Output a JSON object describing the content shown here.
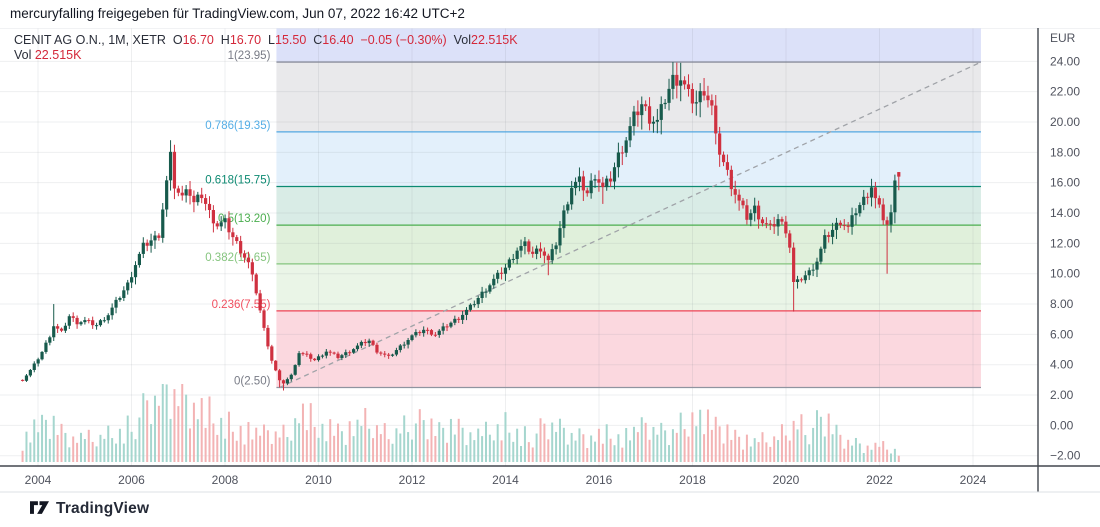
{
  "header": {
    "copyright": "mercuryfalling freigegeben für TradingView.com, Jun 07, 2022 16:42 UTC+2"
  },
  "legend": {
    "row1": [
      {
        "text": "CENIT AG O.N., 1M, XETR",
        "color": "dark"
      },
      {
        "text": "  O",
        "color": "dark"
      },
      {
        "text": "16.70",
        "color": "red"
      },
      {
        "text": "  H",
        "color": "dark"
      },
      {
        "text": "16.70",
        "color": "red"
      },
      {
        "text": "  L",
        "color": "dark"
      },
      {
        "text": "15.50",
        "color": "red"
      },
      {
        "text": "  C",
        "color": "dark"
      },
      {
        "text": "16.40",
        "color": "red"
      },
      {
        "text": "  −0.05 (−0.30%)",
        "color": "red"
      },
      {
        "text": "  Vol",
        "color": "dark"
      },
      {
        "text": "22.515K",
        "color": "red"
      }
    ],
    "row2": [
      {
        "text": "Vol ",
        "color": "dark"
      },
      {
        "text": "22.515K",
        "color": "red"
      }
    ]
  },
  "footer": {
    "brand": "TradingView"
  },
  "colors": {
    "candle_up": "#175a4c",
    "candle_down": "#cf3140",
    "volume_up": "#a5d6ce",
    "volume_down": "#f3b3b4",
    "grid": "rgba(120,130,140,0.13)",
    "axis_text": "#50535e",
    "axis_line": "#42464e",
    "trendline": "#a0a3a8",
    "legend_dark": "#2a2e39",
    "legend_red": "#d4283a",
    "top_band": "#dce1f9",
    "top_band_edge": "#7b7f8e"
  },
  "chart_data": {
    "type": "candlestick",
    "title": "CENIT AG O.N., 1M, XETR — monthly candles with volume and Fibonacci retracement",
    "symbol": "CENIT AG O.N.",
    "interval": "1M",
    "exchange": "XETR",
    "last_values": {
      "open": 16.7,
      "high": 16.7,
      "low": 15.5,
      "close": 16.4,
      "change": "−0.05",
      "change_pct": "−0.30%",
      "volume": "22.515K"
    },
    "y_axis": {
      "unit": "EUR",
      "tick_labels": [
        "24.00",
        "22.00",
        "20.00",
        "18.00",
        "16.00",
        "14.00",
        "12.00",
        "10.00",
        "8.00",
        "6.00",
        "4.00",
        "2.00",
        "0.00",
        "−2.00"
      ],
      "tick_values": [
        24,
        22,
        20,
        18,
        16,
        14,
        12,
        10,
        8,
        6,
        4,
        2,
        0,
        -2
      ],
      "range": [
        -2.7,
        26.2
      ]
    },
    "x_axis": {
      "tick_labels": [
        "2004",
        "2006",
        "2008",
        "2010",
        "2012",
        "2014",
        "2016",
        "2018",
        "2020",
        "2022",
        "2024"
      ],
      "tick_values": [
        2004,
        2006,
        2008,
        2010,
        2012,
        2014,
        2016,
        2018,
        2020,
        2022,
        2024
      ],
      "range": [
        2003.2,
        2024.6
      ]
    },
    "fib": {
      "x_range": [
        2009.1,
        2024.17
      ],
      "levels": [
        {
          "ratio": 1,
          "label": "1(23.95)",
          "value": 23.95,
          "line_color": "#7b7f8e",
          "label_color": "#787b86"
        },
        {
          "ratio": 0.786,
          "label": "0.786(19.35)",
          "value": 19.35,
          "line_color": "#53a8e2",
          "label_color": "#55aee6"
        },
        {
          "ratio": 0.618,
          "label": "0.618(15.75)",
          "value": 15.75,
          "line_color": "#0d8a72",
          "label_color": "#0d8a72"
        },
        {
          "ratio": 0.5,
          "label": "0.5(13.20)",
          "value": 13.2,
          "line_color": "#4bae4f",
          "label_color": "#4bae4f"
        },
        {
          "ratio": 0.382,
          "label": "0.382(10.65)",
          "value": 10.65,
          "line_color": "#86c57f",
          "label_color": "#86c57f"
        },
        {
          "ratio": 0.236,
          "label": "0.236(7.55)",
          "value": 7.55,
          "line_color": "#ef4255",
          "label_color": "#f15060"
        },
        {
          "ratio": 0,
          "label": "0(2.50)",
          "value": 2.5,
          "line_color": "#9094a0",
          "label_color": "#787b86"
        }
      ],
      "band_fills_top_to_bottom": [
        "#dce1f9",
        "#e9e9eb",
        "#e3f0fb",
        "#d9ece6",
        "#e0f0db",
        "#eaf5e7",
        "#fbd8df"
      ]
    },
    "trendline": {
      "from": [
        2009.17,
        2.5
      ],
      "to": [
        2024.17,
        23.95
      ],
      "style": "dashed"
    },
    "candle_step_years": 0.0833,
    "first_open": 3.0,
    "close_anchors": [
      [
        2003.67,
        3.0
      ],
      [
        2003.83,
        3.6
      ],
      [
        2003.92,
        4.0
      ],
      [
        2004.08,
        4.8
      ],
      [
        2004.25,
        5.9
      ],
      [
        2004.33,
        6.6
      ],
      [
        2004.5,
        6.1
      ],
      [
        2004.67,
        7.2
      ],
      [
        2004.83,
        6.8
      ],
      [
        2005.0,
        6.9
      ],
      [
        2005.25,
        6.6
      ],
      [
        2005.5,
        7.3
      ],
      [
        2005.75,
        8.5
      ],
      [
        2005.92,
        9.3
      ],
      [
        2006.08,
        10.6
      ],
      [
        2006.25,
        11.8
      ],
      [
        2006.42,
        12.2
      ],
      [
        2006.58,
        12.5
      ],
      [
        2006.75,
        16.0
      ],
      [
        2006.83,
        17.8
      ],
      [
        2006.92,
        15.8
      ],
      [
        2007.08,
        14.9
      ],
      [
        2007.17,
        15.9
      ],
      [
        2007.33,
        14.6
      ],
      [
        2007.5,
        15.2
      ],
      [
        2007.67,
        14.0
      ],
      [
        2007.83,
        13.2
      ],
      [
        2008.0,
        13.4
      ],
      [
        2008.17,
        12.4
      ],
      [
        2008.33,
        11.6
      ],
      [
        2008.5,
        10.7
      ],
      [
        2008.67,
        8.8
      ],
      [
        2008.83,
        6.4
      ],
      [
        2009.0,
        4.3
      ],
      [
        2009.17,
        2.9
      ],
      [
        2009.25,
        2.8
      ],
      [
        2009.42,
        3.3
      ],
      [
        2009.58,
        4.8
      ],
      [
        2009.75,
        4.6
      ],
      [
        2009.92,
        4.3
      ],
      [
        2010.17,
        4.9
      ],
      [
        2010.42,
        4.5
      ],
      [
        2010.67,
        4.9
      ],
      [
        2010.92,
        5.4
      ],
      [
        2011.08,
        5.6
      ],
      [
        2011.25,
        4.9
      ],
      [
        2011.5,
        4.5
      ],
      [
        2011.75,
        5.2
      ],
      [
        2012.0,
        5.9
      ],
      [
        2012.25,
        6.3
      ],
      [
        2012.5,
        6.0
      ],
      [
        2012.75,
        6.6
      ],
      [
        2013.0,
        7.1
      ],
      [
        2013.25,
        7.8
      ],
      [
        2013.5,
        8.7
      ],
      [
        2013.75,
        9.6
      ],
      [
        2014.0,
        10.4
      ],
      [
        2014.25,
        11.6
      ],
      [
        2014.42,
        11.9
      ],
      [
        2014.58,
        11.3
      ],
      [
        2014.75,
        11.7
      ],
      [
        2014.92,
        10.8
      ],
      [
        2015.08,
        12.0
      ],
      [
        2015.25,
        14.0
      ],
      [
        2015.42,
        15.8
      ],
      [
        2015.58,
        16.1
      ],
      [
        2015.75,
        15.3
      ],
      [
        2015.92,
        16.6
      ],
      [
        2016.08,
        15.6
      ],
      [
        2016.25,
        16.3
      ],
      [
        2016.42,
        17.8
      ],
      [
        2016.58,
        18.9
      ],
      [
        2016.75,
        20.3
      ],
      [
        2016.92,
        21.2
      ],
      [
        2017.08,
        20.3
      ],
      [
        2017.25,
        20.0
      ],
      [
        2017.42,
        21.6
      ],
      [
        2017.58,
        22.8
      ],
      [
        2017.75,
        22.9
      ],
      [
        2017.92,
        21.7
      ],
      [
        2018.08,
        21.3
      ],
      [
        2018.25,
        22.2
      ],
      [
        2018.42,
        20.9
      ],
      [
        2018.5,
        18.8
      ],
      [
        2018.67,
        17.3
      ],
      [
        2018.83,
        15.9
      ],
      [
        2019.0,
        14.7
      ],
      [
        2019.17,
        13.7
      ],
      [
        2019.33,
        14.3
      ],
      [
        2019.5,
        13.4
      ],
      [
        2019.67,
        13.0
      ],
      [
        2019.83,
        13.6
      ],
      [
        2020.0,
        12.9
      ],
      [
        2020.08,
        11.8
      ],
      [
        2020.17,
        9.2
      ],
      [
        2020.33,
        9.7
      ],
      [
        2020.5,
        10.1
      ],
      [
        2020.67,
        10.9
      ],
      [
        2020.83,
        12.3
      ],
      [
        2021.0,
        12.9
      ],
      [
        2021.17,
        13.5
      ],
      [
        2021.33,
        13.0
      ],
      [
        2021.5,
        14.2
      ],
      [
        2021.67,
        14.9
      ],
      [
        2021.83,
        15.8
      ],
      [
        2021.92,
        14.8
      ],
      [
        2022.08,
        13.7
      ],
      [
        2022.17,
        13.2
      ],
      [
        2022.25,
        13.9
      ],
      [
        2022.33,
        16.5
      ],
      [
        2022.42,
        16.4
      ]
    ],
    "wick_overrides": [
      [
        2004.33,
        8.0,
        null
      ],
      [
        2006.83,
        18.8,
        null
      ],
      [
        2006.92,
        18.5,
        null
      ],
      [
        2009.17,
        null,
        2.5
      ],
      [
        2009.25,
        null,
        2.3
      ],
      [
        2014.92,
        null,
        9.9
      ],
      [
        2016.08,
        null,
        14.6
      ],
      [
        2017.58,
        23.95,
        null
      ],
      [
        2017.75,
        23.9,
        null
      ],
      [
        2018.25,
        22.9,
        null
      ],
      [
        2020.17,
        null,
        7.5
      ],
      [
        2022.17,
        null,
        10.0
      ],
      [
        2022.42,
        16.7,
        15.5
      ]
    ],
    "volume_anchors": [
      [
        2003.67,
        25
      ],
      [
        2004.2,
        42
      ],
      [
        2004.6,
        30
      ],
      [
        2005.2,
        24
      ],
      [
        2005.8,
        36
      ],
      [
        2006.3,
        56
      ],
      [
        2006.8,
        80
      ],
      [
        2007.3,
        70
      ],
      [
        2007.8,
        46
      ],
      [
        2008.3,
        40
      ],
      [
        2008.8,
        30
      ],
      [
        2009.3,
        32
      ],
      [
        2009.6,
        56
      ],
      [
        2010.0,
        38
      ],
      [
        2010.5,
        32
      ],
      [
        2011.0,
        42
      ],
      [
        2011.5,
        30
      ],
      [
        2012.0,
        46
      ],
      [
        2012.5,
        32
      ],
      [
        2013.0,
        38
      ],
      [
        2013.5,
        30
      ],
      [
        2014.0,
        42
      ],
      [
        2014.5,
        30
      ],
      [
        2015.0,
        40
      ],
      [
        2015.5,
        30
      ],
      [
        2016.0,
        32
      ],
      [
        2016.5,
        28
      ],
      [
        2017.0,
        36
      ],
      [
        2017.5,
        30
      ],
      [
        2018.0,
        56
      ],
      [
        2018.3,
        42
      ],
      [
        2018.8,
        30
      ],
      [
        2019.3,
        22
      ],
      [
        2019.8,
        26
      ],
      [
        2020.2,
        46
      ],
      [
        2020.5,
        38
      ],
      [
        2020.8,
        44
      ],
      [
        2021.2,
        26
      ],
      [
        2021.6,
        20
      ],
      [
        2022.0,
        18
      ],
      [
        2022.3,
        14
      ],
      [
        2022.42,
        12
      ]
    ]
  }
}
